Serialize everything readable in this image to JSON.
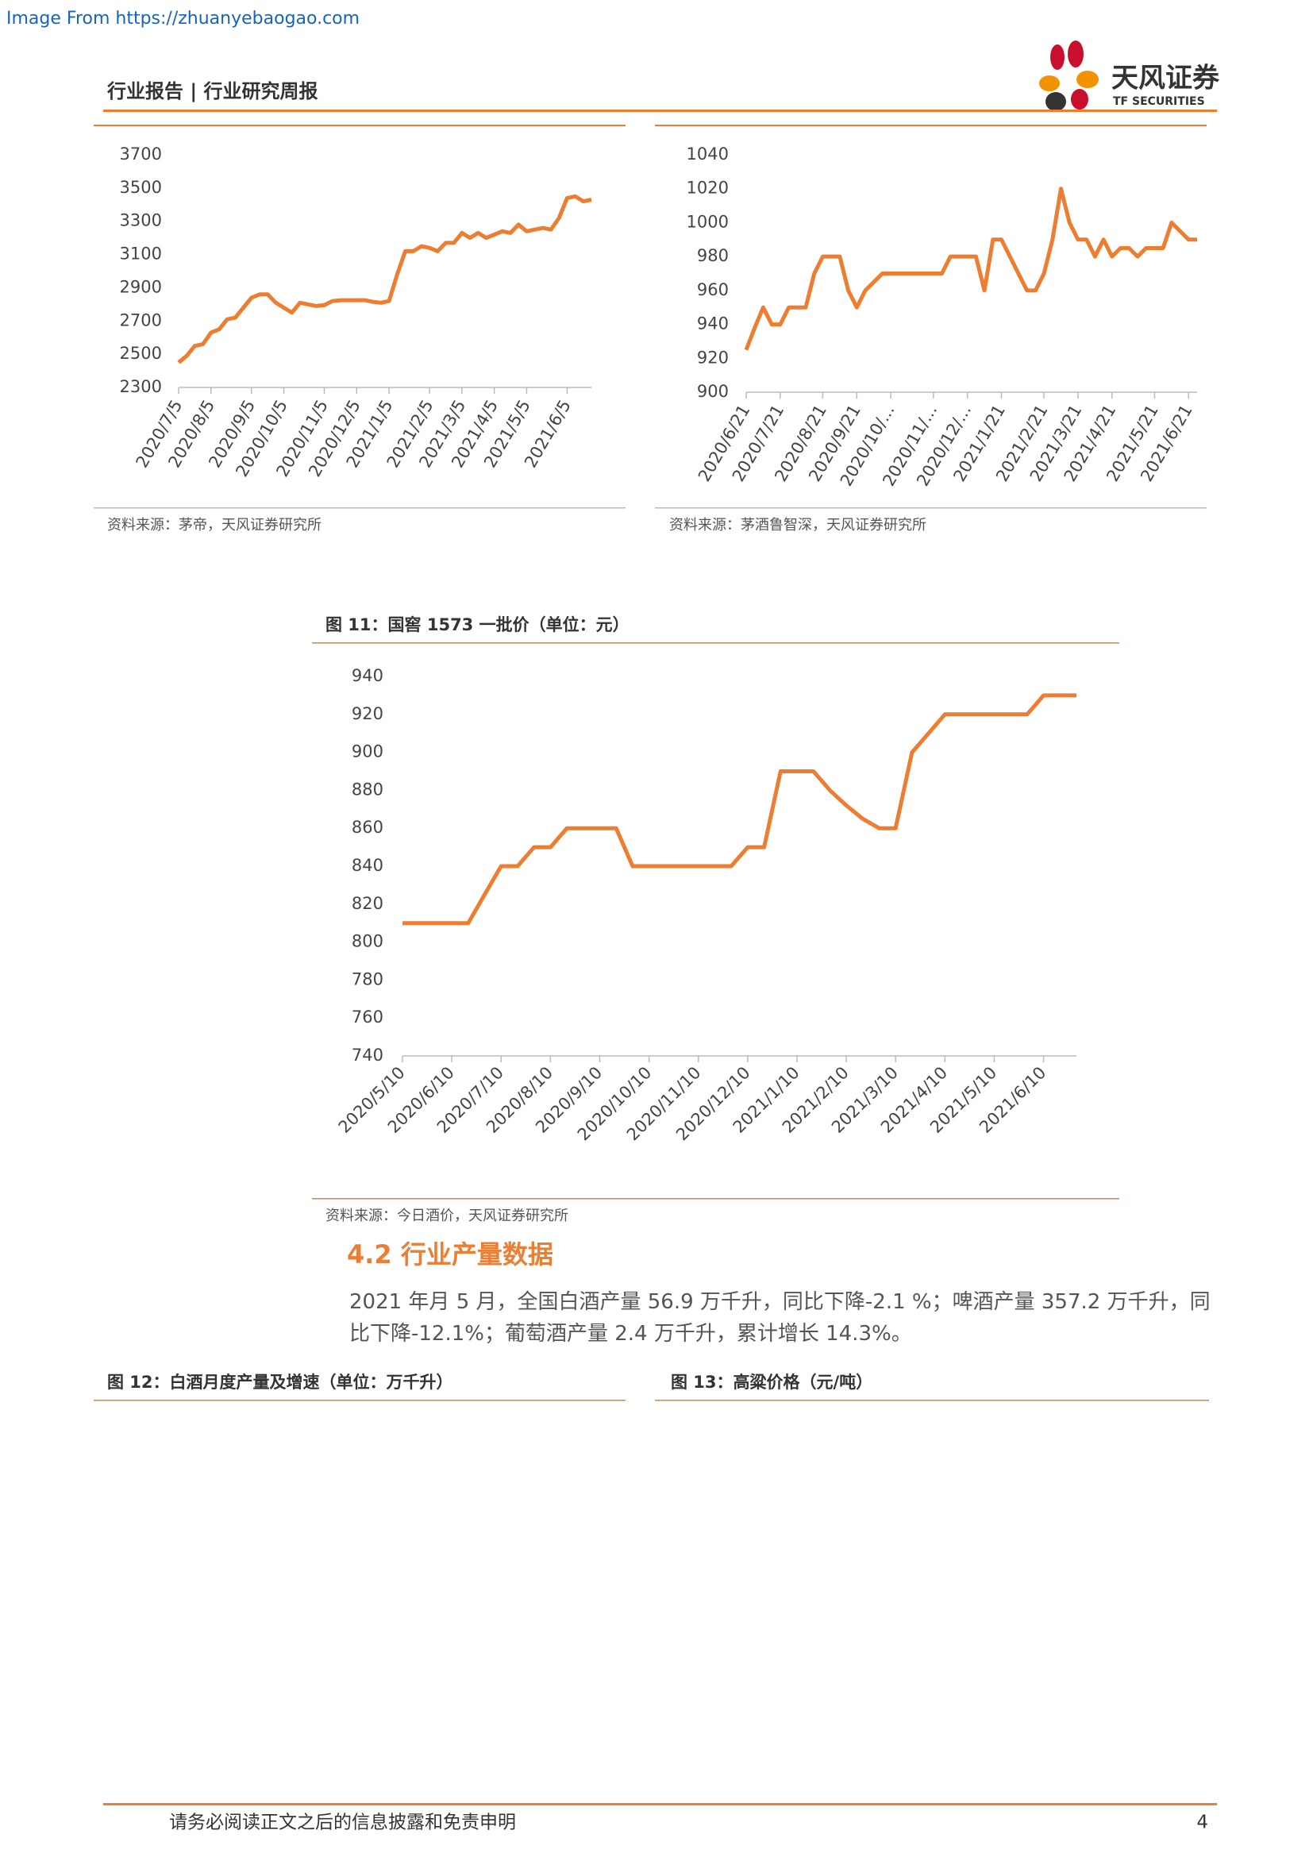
{
  "watermark": "Image From https://zhuanyebaogao.com",
  "header": {
    "title": "行业报告 | 行业研究周报",
    "logo_name": "天风证券",
    "logo_subtitle": "TF SECURITIES"
  },
  "chart_data": [
    {
      "type": "line",
      "color": "#ed7d31",
      "ylim": [
        2300,
        3700
      ],
      "yticks": [
        2300,
        2500,
        2700,
        2900,
        3100,
        3300,
        3500,
        3700
      ],
      "categories": [
        "2020/7/5",
        null,
        null,
        null,
        "2020/8/5",
        null,
        null,
        null,
        null,
        "2020/9/5",
        null,
        null,
        null,
        "2020/10/5",
        null,
        null,
        null,
        null,
        "2020/11/5",
        null,
        null,
        null,
        "2020/12/5",
        null,
        null,
        null,
        "2021/1/5",
        null,
        null,
        null,
        null,
        "2021/2/5",
        null,
        null,
        null,
        "2021/3/5",
        null,
        null,
        null,
        "2021/4/5",
        null,
        null,
        null,
        "2021/5/5",
        null,
        null,
        null,
        null,
        "2021/6/5",
        null,
        null,
        null
      ],
      "values": [
        2450,
        2490,
        2550,
        2560,
        2630,
        2650,
        2710,
        2720,
        2780,
        2840,
        2860,
        2860,
        2810,
        2780,
        2750,
        2810,
        2800,
        2790,
        2795,
        2820,
        2825,
        2825,
        2825,
        2825,
        2815,
        2810,
        2820,
        2980,
        3120,
        3120,
        3150,
        3140,
        3120,
        3170,
        3170,
        3230,
        3200,
        3230,
        3200,
        3220,
        3240,
        3230,
        3280,
        3240,
        3250,
        3260,
        3250,
        3320,
        3440,
        3450,
        3420,
        3430
      ],
      "source": "资料来源：茅帝，天风证券研究所"
    },
    {
      "type": "line",
      "color": "#ed7d31",
      "ylim": [
        900,
        1040
      ],
      "yticks": [
        900,
        920,
        940,
        960,
        980,
        1000,
        1020,
        1040
      ],
      "categories": [
        "2020/6/21",
        null,
        null,
        null,
        "2020/7/21",
        null,
        null,
        null,
        null,
        "2020/8/21",
        null,
        null,
        null,
        "2020/9/21",
        null,
        null,
        null,
        "2020/10/...",
        null,
        null,
        null,
        null,
        "2020/11/...",
        null,
        null,
        null,
        "2020/12/...",
        null,
        null,
        null,
        "2021/1/21",
        null,
        null,
        null,
        null,
        "2021/2/21",
        null,
        null,
        null,
        "2021/3/21",
        null,
        null,
        null,
        "2021/4/21",
        null,
        null,
        null,
        null,
        "2021/5/21",
        null,
        null,
        null,
        "2021/6/21",
        null
      ],
      "values": [
        925,
        938,
        950,
        940,
        940,
        950,
        950,
        950,
        970,
        980,
        980,
        980,
        960,
        950,
        960,
        965,
        970,
        970,
        970,
        970,
        970,
        970,
        970,
        970,
        980,
        980,
        980,
        980,
        960,
        990,
        990,
        980,
        970,
        960,
        960,
        970,
        990,
        1020,
        1000,
        990,
        990,
        980,
        990,
        980,
        985,
        985,
        980,
        985,
        985,
        985,
        1000,
        995,
        990,
        990
      ],
      "source": "资料来源：茅酒鲁智深，天风证券研究所"
    },
    {
      "type": "line",
      "title": "图 11：国窖 1573 一批价（单位：元）",
      "color": "#ed7d31",
      "ylim": [
        740,
        940
      ],
      "yticks": [
        740,
        760,
        780,
        800,
        820,
        840,
        860,
        880,
        900,
        920,
        940
      ],
      "categories": [
        "2020/5/10",
        null,
        null,
        "2020/6/10",
        null,
        null,
        "2020/7/10",
        null,
        null,
        "2020/8/10",
        null,
        null,
        "2020/9/10",
        null,
        null,
        "2020/10/10",
        null,
        null,
        "2020/11/10",
        null,
        null,
        "2020/12/10",
        null,
        null,
        "2021/1/10",
        null,
        null,
        "2021/2/10",
        null,
        null,
        "2021/3/10",
        null,
        null,
        "2021/4/10",
        null,
        null,
        "2021/5/10",
        null,
        null,
        "2021/6/10",
        null,
        null
      ],
      "values": [
        810,
        810,
        810,
        810,
        810,
        825,
        840,
        840,
        850,
        850,
        860,
        860,
        860,
        860,
        840,
        840,
        840,
        840,
        840,
        840,
        840,
        850,
        850,
        890,
        890,
        890,
        880,
        872,
        865,
        860,
        860,
        900,
        910,
        920,
        920,
        920,
        920,
        920,
        920,
        930,
        930,
        930
      ],
      "source": "资料来源：今日酒价，天风证券研究所"
    }
  ],
  "section": {
    "heading": "4.2 行业产量数据",
    "paragraph": "2021 年月 5 月，全国白酒产量 56.9 万千升，同比下降-2.1 %；啤酒产量 357.2 万千升，同比下降-12.1%；葡萄酒产量 2.4 万千升，累计增长 14.3%。"
  },
  "figures": [
    "图 12：白酒月度产量及增速（单位：万千升）",
    "图 13：高粱价格（元/吨）"
  ],
  "footer": {
    "disclaimer": "请务必阅读正文之后的信息披露和免责申明",
    "page": 4
  }
}
